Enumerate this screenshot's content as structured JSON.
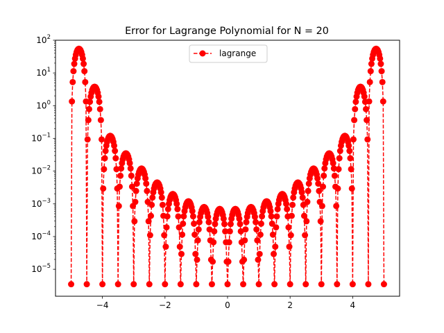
{
  "chart_data": {
    "type": "line",
    "title": "Error for Lagrange Polynomial for N = 20",
    "xlabel": "",
    "ylabel": "",
    "xlim": [
      -5.5,
      5.5
    ],
    "ylim": [
      1.5e-06,
      100
    ],
    "y_scale": "log",
    "grid": false,
    "legend_position": "top-center",
    "x_ticks": [
      -4,
      -2,
      0,
      2,
      4
    ],
    "x_tick_labels": [
      "−4",
      "−2",
      "0",
      "2",
      "4"
    ],
    "y_ticks": [
      100,
      10,
      1,
      0.1,
      0.01,
      0.001,
      0.0001,
      1e-05
    ],
    "y_tick_labels": [
      {
        "base": "10",
        "exp": "2"
      },
      {
        "base": "10",
        "exp": "1"
      },
      {
        "base": "10",
        "exp": "0"
      },
      {
        "base": "10",
        "exp": "−1"
      },
      {
        "base": "10",
        "exp": "−2"
      },
      {
        "base": "10",
        "exp": "−3"
      },
      {
        "base": "10",
        "exp": "−4"
      },
      {
        "base": "10",
        "exp": "−5"
      }
    ],
    "series": [
      {
        "name": "lagrange",
        "color": "#ff0000",
        "line_style": "dashed",
        "marker": "circle",
        "nodes": [
          -5,
          -4.5,
          -4,
          -3.5,
          -3,
          -2.5,
          -2,
          -1.5,
          -1,
          -0.5,
          0,
          0.5,
          1,
          1.5,
          2,
          2.5,
          3,
          3.5,
          4,
          4.5,
          5
        ],
        "lobe_peaks": [
          55,
          3.8,
          0.12,
          0.035,
          0.012,
          0.0045,
          0.002,
          0.0012,
          0.0008,
          0.0007,
          0.0007,
          0.0008,
          0.0012,
          0.002,
          0.0045,
          0.012,
          0.035,
          0.12,
          3.8,
          55
        ],
        "min_error": 3.5e-06,
        "samples_per_unit": 40
      }
    ]
  }
}
